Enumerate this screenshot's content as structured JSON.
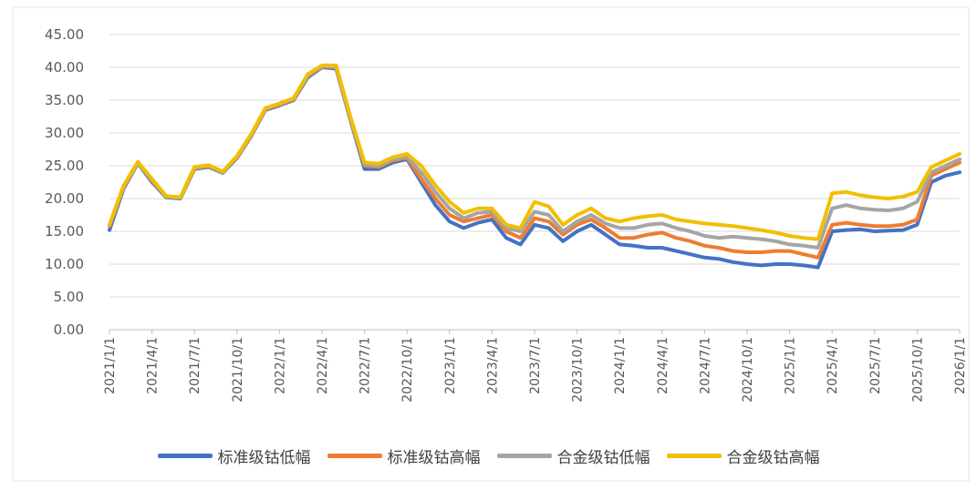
{
  "chart_data": {
    "type": "line",
    "title": "",
    "xlabel": "",
    "ylabel": "",
    "ylim": [
      0,
      45
    ],
    "yticks": [
      "0.00",
      "5.00",
      "10.00",
      "15.00",
      "20.00",
      "25.00",
      "30.00",
      "35.00",
      "40.00",
      "45.00"
    ],
    "xticks": [
      "2021/1/1",
      "2021/4/1",
      "2021/7/1",
      "2021/10/1",
      "2022/1/1",
      "2022/4/1",
      "2022/7/1",
      "2022/10/1",
      "2023/1/1",
      "2023/4/1",
      "2023/7/1",
      "2023/10/1",
      "2024/1/1",
      "2024/4/1",
      "2024/7/1",
      "2024/10/1",
      "2025/1/1",
      "2025/4/1",
      "2025/7/1",
      "2025/10/1",
      "2026/1/1"
    ],
    "grid": "horizontal",
    "legend_position": "bottom",
    "x": [
      "2021/1/1",
      "2021/2/1",
      "2021/3/1",
      "2021/4/1",
      "2021/5/1",
      "2021/6/1",
      "2021/7/1",
      "2021/8/1",
      "2021/9/1",
      "2021/10/1",
      "2021/11/1",
      "2021/12/1",
      "2022/1/1",
      "2022/2/1",
      "2022/3/1",
      "2022/4/1",
      "2022/5/1",
      "2022/6/1",
      "2022/7/1",
      "2022/8/1",
      "2022/9/1",
      "2022/10/1",
      "2022/11/1",
      "2022/12/1",
      "2023/1/1",
      "2023/2/1",
      "2023/3/1",
      "2023/4/1",
      "2023/5/1",
      "2023/6/1",
      "2023/7/1",
      "2023/8/1",
      "2023/9/1",
      "2023/10/1",
      "2023/11/1",
      "2023/12/1",
      "2024/1/1",
      "2024/2/1",
      "2024/3/1",
      "2024/4/1",
      "2024/5/1",
      "2024/6/1",
      "2024/7/1",
      "2024/8/1",
      "2024/9/1",
      "2024/10/1",
      "2024/11/1",
      "2024/12/1",
      "2025/1/1",
      "2025/2/1",
      "2025/3/1",
      "2025/4/1",
      "2025/5/1",
      "2025/6/1",
      "2025/7/1",
      "2025/8/1",
      "2025/9/1",
      "2025/10/1",
      "2025/11/1",
      "2025/12/1",
      "2026/1/1"
    ],
    "series": [
      {
        "name": "标准级钴低幅",
        "color": "#4472C4",
        "values": [
          15.2,
          21.5,
          25.4,
          22.5,
          20.2,
          20.0,
          24.5,
          24.8,
          23.9,
          26.2,
          29.5,
          33.5,
          34.2,
          35.0,
          38.5,
          40.0,
          39.8,
          32.0,
          24.5,
          24.5,
          25.5,
          26.0,
          22.5,
          19.0,
          16.5,
          15.5,
          16.3,
          16.8,
          14.0,
          13.0,
          16.0,
          15.5,
          13.5,
          15.0,
          16.0,
          14.5,
          13.0,
          12.8,
          12.5,
          12.5,
          12.0,
          11.5,
          11.0,
          10.8,
          10.3,
          10.0,
          9.8,
          10.0,
          10.0,
          9.8,
          9.5,
          15.0,
          15.2,
          15.3,
          15.0,
          15.1,
          15.2,
          16.0,
          22.5,
          23.5,
          24.0
        ]
      },
      {
        "name": "标准级钴高幅",
        "color": "#ED7D31",
        "values": [
          15.8,
          21.7,
          25.5,
          22.7,
          20.3,
          20.1,
          24.6,
          24.9,
          24.0,
          26.3,
          29.6,
          33.6,
          34.3,
          35.1,
          38.7,
          40.1,
          40.0,
          32.2,
          25.0,
          24.8,
          25.8,
          26.2,
          23.0,
          20.0,
          17.5,
          16.5,
          17.0,
          17.5,
          15.0,
          14.0,
          17.0,
          16.5,
          14.5,
          16.0,
          16.8,
          15.5,
          14.0,
          14.0,
          14.5,
          14.8,
          14.0,
          13.5,
          12.8,
          12.5,
          12.0,
          11.8,
          11.8,
          12.0,
          12.0,
          11.5,
          11.0,
          16.0,
          16.3,
          16.0,
          15.8,
          15.8,
          16.0,
          16.8,
          23.5,
          24.5,
          25.5
        ]
      },
      {
        "name": "合金级钴低幅",
        "color": "#A5A5A5",
        "values": [
          15.9,
          21.8,
          25.5,
          22.8,
          20.3,
          20.1,
          24.7,
          25.0,
          24.0,
          26.4,
          29.7,
          33.7,
          34.4,
          35.2,
          38.8,
          40.2,
          40.1,
          32.3,
          25.2,
          25.0,
          26.0,
          26.4,
          24.0,
          21.0,
          18.5,
          17.0,
          17.8,
          18.0,
          15.5,
          15.0,
          18.0,
          17.5,
          15.0,
          16.5,
          17.5,
          16.2,
          15.5,
          15.5,
          16.0,
          16.2,
          15.5,
          15.0,
          14.3,
          14.0,
          14.2,
          14.0,
          13.8,
          13.5,
          13.0,
          12.8,
          12.5,
          18.5,
          19.0,
          18.5,
          18.3,
          18.2,
          18.5,
          19.5,
          24.0,
          25.0,
          26.0
        ]
      },
      {
        "name": "合金级钴高幅",
        "color": "#F2BF00",
        "values": [
          16.0,
          22.0,
          25.6,
          23.0,
          20.4,
          20.2,
          24.8,
          25.1,
          24.1,
          26.5,
          29.8,
          33.8,
          34.5,
          35.3,
          39.0,
          40.3,
          40.3,
          32.5,
          25.5,
          25.3,
          26.3,
          26.8,
          25.0,
          22.0,
          19.5,
          17.8,
          18.5,
          18.5,
          16.0,
          15.5,
          19.5,
          18.8,
          16.0,
          17.5,
          18.5,
          17.0,
          16.5,
          17.0,
          17.3,
          17.5,
          16.8,
          16.5,
          16.2,
          16.0,
          15.8,
          15.5,
          15.2,
          14.8,
          14.3,
          14.0,
          13.8,
          20.8,
          21.0,
          20.5,
          20.2,
          20.0,
          20.3,
          21.0,
          24.8,
          25.8,
          26.8
        ]
      }
    ]
  }
}
